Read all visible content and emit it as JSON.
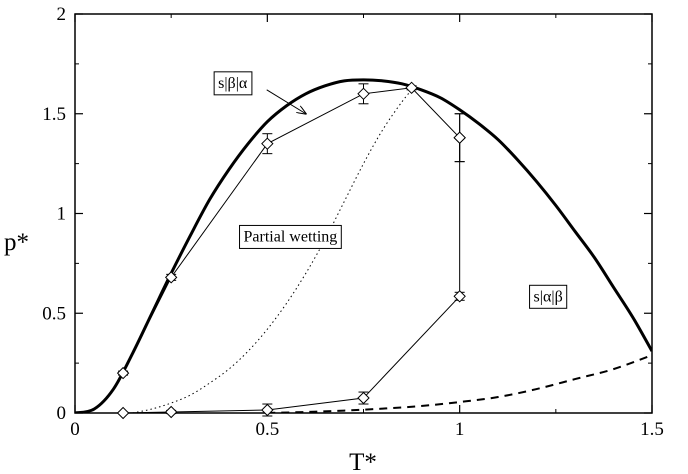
{
  "chart_data": {
    "type": "line",
    "xlabel": "T*",
    "ylabel": "p*",
    "xlim": [
      0,
      1.5
    ],
    "ylim": [
      0,
      2
    ],
    "x_ticks": [
      0,
      0.5,
      1,
      1.5
    ],
    "x_tick_labels": [
      "0",
      "0.5",
      "1",
      "1.5"
    ],
    "y_ticks": [
      0,
      0.5,
      1,
      1.5,
      2
    ],
    "y_tick_labels": [
      "0",
      "0.5",
      "1",
      "1.5",
      "2"
    ],
    "grid": false,
    "series": [
      {
        "style": "thick-solid",
        "color": "#000000",
        "x": [
          0,
          0.05,
          0.1,
          0.15,
          0.2,
          0.25,
          0.3,
          0.35,
          0.4,
          0.45,
          0.5,
          0.55,
          0.6,
          0.65,
          0.7,
          0.75,
          0.8,
          0.85,
          0.9,
          0.95,
          1.0,
          1.05,
          1.1,
          1.15,
          1.2,
          1.25,
          1.3,
          1.35,
          1.4,
          1.45,
          1.5
        ],
        "y": [
          0,
          0.02,
          0.12,
          0.3,
          0.5,
          0.7,
          0.89,
          1.07,
          1.22,
          1.35,
          1.46,
          1.54,
          1.6,
          1.64,
          1.665,
          1.67,
          1.665,
          1.65,
          1.62,
          1.58,
          1.52,
          1.45,
          1.37,
          1.27,
          1.16,
          1.04,
          0.91,
          0.78,
          0.63,
          0.48,
          0.31
        ]
      },
      {
        "style": "dashed",
        "color": "#000000",
        "x": [
          0.5,
          0.6,
          0.7,
          0.8,
          0.9,
          1.0,
          1.1,
          1.2,
          1.3,
          1.4,
          1.5
        ],
        "y": [
          0,
          0.005,
          0.012,
          0.022,
          0.035,
          0.055,
          0.08,
          0.12,
          0.17,
          0.22,
          0.29
        ]
      },
      {
        "style": "dotted",
        "color": "#000000",
        "x": [
          0.15,
          0.2,
          0.25,
          0.3,
          0.35,
          0.4,
          0.45,
          0.5,
          0.55,
          0.6,
          0.65,
          0.7,
          0.75,
          0.8,
          0.85,
          0.88
        ],
        "y": [
          0,
          0.02,
          0.05,
          0.09,
          0.15,
          0.22,
          0.31,
          0.42,
          0.55,
          0.7,
          0.87,
          1.06,
          1.25,
          1.42,
          1.56,
          1.63
        ]
      },
      {
        "style": "thin-solid-diamond",
        "color": "#000000",
        "x": [
          0.125,
          0.25,
          0.5,
          0.75,
          0.875,
          1.0
        ],
        "y": [
          0.2,
          0.68,
          1.35,
          1.6,
          1.63,
          1.38
        ],
        "yerr": [
          0.01,
          0.015,
          0.05,
          0.05,
          0.01,
          0.12
        ]
      },
      {
        "style": "thin-solid-diamond",
        "color": "#000000",
        "x": [
          0.125,
          0.25,
          0.5,
          0.75,
          1.0,
          1.0,
          1.0
        ],
        "y": [
          0.0,
          0.005,
          0.015,
          0.075,
          0.585,
          1.0,
          1.38
        ],
        "yerr": [
          0.005,
          0.008,
          0.03,
          0.03,
          0.02,
          0,
          0.12
        ]
      }
    ],
    "annotations": [
      {
        "text": "s|β|α",
        "x": 0.41,
        "y": 1.66,
        "boxed": true,
        "arrow_to": [
          0.6,
          1.5
        ]
      },
      {
        "text": "Partial wetting",
        "x": 0.56,
        "y": 0.89,
        "boxed": true
      },
      {
        "text": "s|α|β",
        "x": 1.23,
        "y": 0.59,
        "boxed": true
      }
    ]
  }
}
